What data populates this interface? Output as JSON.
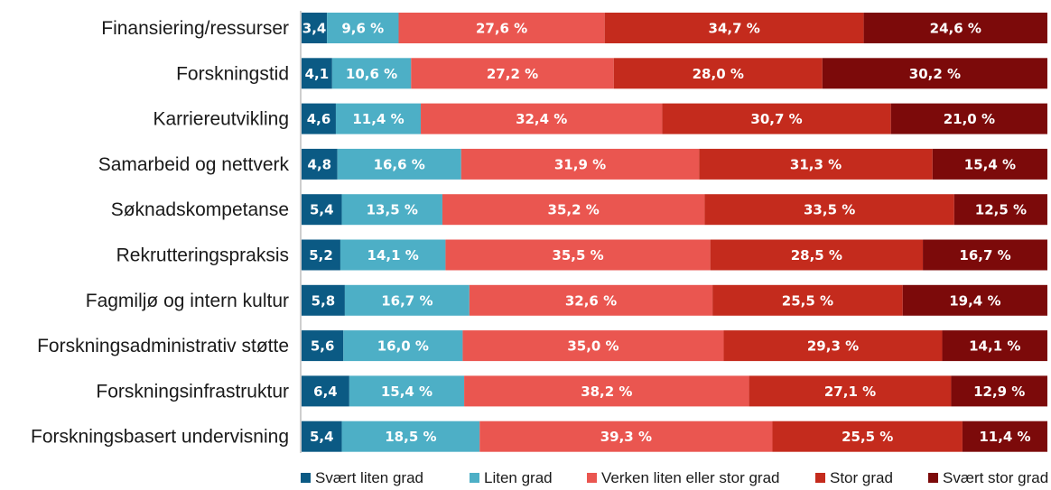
{
  "chart_data": {
    "type": "bar",
    "orientation": "horizontal",
    "stacked": true,
    "percent_stacked": true,
    "title": "",
    "xlabel": "",
    "ylabel": "",
    "xlim": [
      0,
      100
    ],
    "grid": false,
    "legend_position": "bottom",
    "categories": [
      "Finansiering/ressurser",
      "Forskningstid",
      "Karriereutvikling",
      "Samarbeid og nettverk",
      "Søknadskompetanse",
      "Rekrutteringspraksis",
      "Fagmiljø og intern kultur",
      "Forskningsadministrativ støtte",
      "Forskningsinfrastruktur",
      "Forskningsbasert undervisning"
    ],
    "series": [
      {
        "name": "Svært liten grad",
        "color": "#0b5a84",
        "values": [
          3.4,
          4.1,
          4.6,
          4.8,
          5.4,
          5.2,
          5.8,
          5.6,
          6.4,
          5.4
        ],
        "labels": [
          "3,4",
          "4,1",
          "4,6",
          "4,8",
          "5,4",
          "5,2",
          "5,8",
          "5,6",
          "6,4",
          "5,4"
        ]
      },
      {
        "name": "Liten grad",
        "color": "#4dafc6",
        "values": [
          9.6,
          10.6,
          11.4,
          16.6,
          13.5,
          14.1,
          16.7,
          16.0,
          15.4,
          18.5
        ],
        "labels": [
          "9,6 %",
          "10,6 %",
          "11,4 %",
          "16,6 %",
          "13,5 %",
          "14,1 %",
          "16,7 %",
          "16,0 %",
          "15,4 %",
          "18,5 %"
        ]
      },
      {
        "name": "Verken liten eller stor grad",
        "color": "#ea5650",
        "values": [
          27.6,
          27.2,
          32.4,
          31.9,
          35.2,
          35.5,
          32.6,
          35.0,
          38.2,
          39.3
        ],
        "labels": [
          "27,6 %",
          "27,2 %",
          "32,4 %",
          "31,9 %",
          "35,2 %",
          "35,5 %",
          "32,6 %",
          "35,0 %",
          "38,2 %",
          "39,3 %"
        ]
      },
      {
        "name": "Stor grad",
        "color": "#c42b1d",
        "values": [
          34.7,
          28.0,
          30.7,
          31.3,
          33.5,
          28.5,
          25.5,
          29.3,
          27.1,
          25.5
        ],
        "labels": [
          "34,7 %",
          "28,0 %",
          "30,7 %",
          "31,3 %",
          "33,5 %",
          "28,5 %",
          "25,5 %",
          "29,3 %",
          "27,1 %",
          "25,5 %"
        ]
      },
      {
        "name": "Svært stor grad",
        "color": "#7c0a0a",
        "values": [
          24.6,
          30.2,
          21.0,
          15.4,
          12.5,
          16.7,
          19.4,
          14.1,
          12.9,
          11.4
        ],
        "labels": [
          "24,6 %",
          "30,2 %",
          "21,0 %",
          "15,4 %",
          "12,5 %",
          "16,7 %",
          "19,4 %",
          "14,1 %",
          "12,9 %",
          "11,4 %"
        ]
      }
    ]
  }
}
